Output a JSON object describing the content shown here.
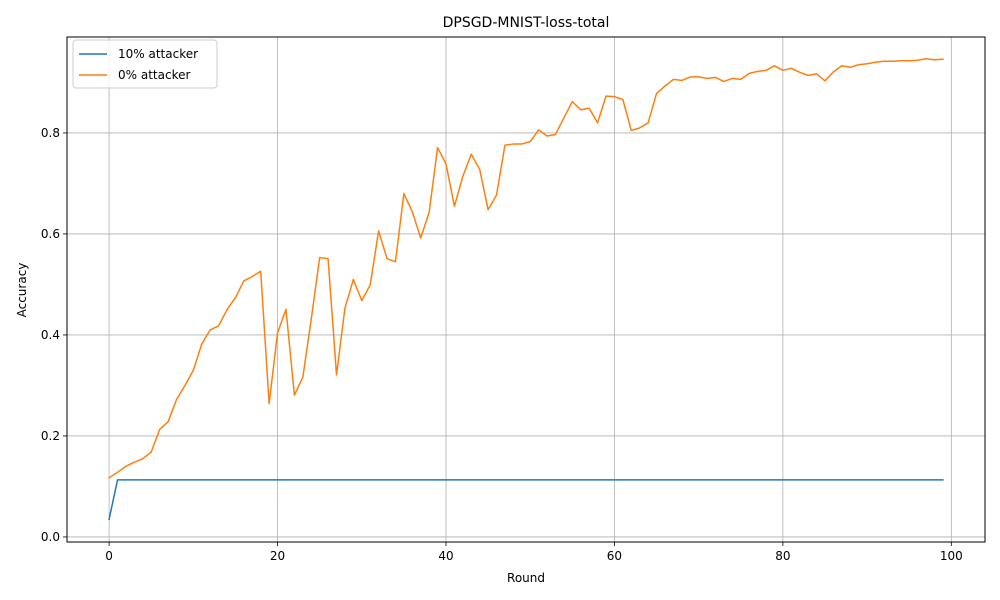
{
  "chart_data": {
    "type": "line",
    "title": "DPSGD-MNIST-loss-total",
    "xlabel": "Round",
    "ylabel": "Accuracy",
    "xlim": [
      -5,
      104
    ],
    "ylim": [
      -0.01,
      0.99
    ],
    "xticks": [
      0,
      20,
      40,
      60,
      80,
      100
    ],
    "yticks": [
      0.0,
      0.2,
      0.4,
      0.6,
      0.8
    ],
    "ytick_labels": [
      "0.0",
      "0.2",
      "0.4",
      "0.6",
      "0.8"
    ],
    "grid": true,
    "legend": "top-left",
    "series": [
      {
        "name": "10% attacker",
        "color": "#1f77b4",
        "x_start": 0,
        "values": [
          0.035,
          0.113,
          0.113,
          0.113,
          0.113,
          0.113,
          0.113,
          0.113,
          0.113,
          0.113,
          0.113,
          0.113,
          0.113,
          0.113,
          0.113,
          0.113,
          0.113,
          0.113,
          0.113,
          0.113,
          0.113,
          0.113,
          0.113,
          0.113,
          0.113,
          0.113,
          0.113,
          0.113,
          0.113,
          0.113,
          0.113,
          0.113,
          0.113,
          0.113,
          0.113,
          0.113,
          0.113,
          0.113,
          0.113,
          0.113,
          0.113,
          0.113,
          0.113,
          0.113,
          0.113,
          0.113,
          0.113,
          0.113,
          0.113,
          0.113,
          0.113,
          0.113,
          0.113,
          0.113,
          0.113,
          0.113,
          0.113,
          0.113,
          0.113,
          0.113,
          0.113,
          0.113,
          0.113,
          0.113,
          0.113,
          0.113,
          0.113,
          0.113,
          0.113,
          0.113,
          0.113,
          0.113,
          0.113,
          0.113,
          0.113,
          0.113,
          0.113,
          0.113,
          0.113,
          0.113,
          0.113,
          0.113,
          0.113,
          0.113,
          0.113,
          0.113,
          0.113,
          0.113,
          0.113,
          0.113,
          0.113,
          0.113,
          0.113,
          0.113,
          0.113,
          0.113,
          0.113,
          0.113,
          0.113,
          0.113
        ]
      },
      {
        "name": "0% attacker",
        "color": "#ff7f0e",
        "x_start": 0,
        "values": [
          0.117,
          0.128,
          0.14,
          0.148,
          0.155,
          0.168,
          0.213,
          0.228,
          0.272,
          0.3,
          0.33,
          0.382,
          0.41,
          0.418,
          0.45,
          0.474,
          0.507,
          0.516,
          0.526,
          0.264,
          0.404,
          0.451,
          0.281,
          0.316,
          0.431,
          0.553,
          0.551,
          0.321,
          0.453,
          0.51,
          0.468,
          0.499,
          0.606,
          0.551,
          0.545,
          0.68,
          0.644,
          0.592,
          0.643,
          0.771,
          0.739,
          0.655,
          0.714,
          0.758,
          0.728,
          0.648,
          0.677,
          0.776,
          0.778,
          0.778,
          0.783,
          0.806,
          0.794,
          0.797,
          0.83,
          0.862,
          0.846,
          0.849,
          0.82,
          0.873,
          0.872,
          0.866,
          0.805,
          0.81,
          0.82,
          0.878,
          0.893,
          0.906,
          0.904,
          0.911,
          0.911,
          0.908,
          0.91,
          0.902,
          0.908,
          0.906,
          0.918,
          0.922,
          0.924,
          0.933,
          0.924,
          0.928,
          0.92,
          0.914,
          0.917,
          0.903,
          0.921,
          0.933,
          0.93,
          0.935,
          0.937,
          0.94,
          0.942,
          0.942,
          0.943,
          0.943,
          0.944,
          0.947,
          0.945,
          0.946
        ]
      }
    ]
  }
}
